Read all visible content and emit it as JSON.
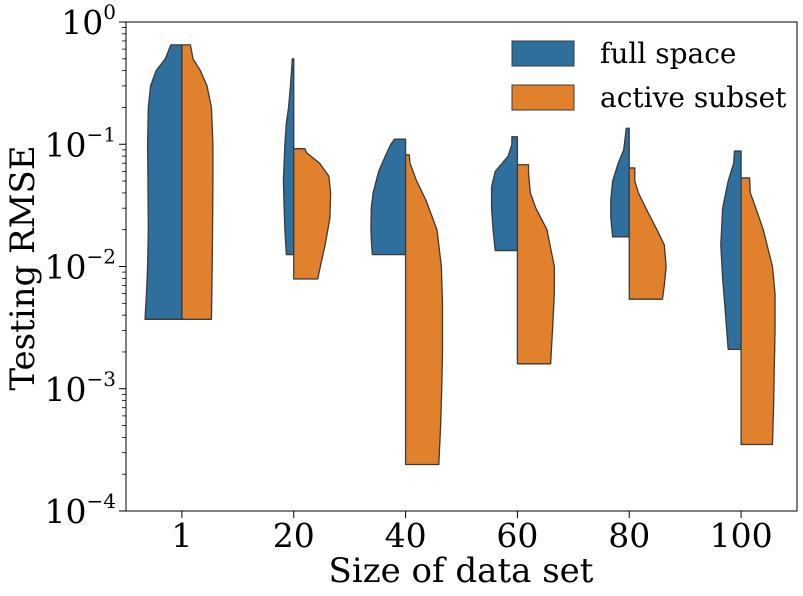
{
  "chart_data": {
    "type": "violin",
    "split": true,
    "xlabel": "Size of data set",
    "ylabel": "Testing RMSE",
    "yscale": "log",
    "ylim": [
      0.0001,
      1
    ],
    "yticks": [
      {
        "value": 1,
        "base": "10",
        "exp": "0"
      },
      {
        "value": 0.1,
        "base": "10",
        "exp": "−1"
      },
      {
        "value": 0.01,
        "base": "10",
        "exp": "−2"
      },
      {
        "value": 0.001,
        "base": "10",
        "exp": "−3"
      },
      {
        "value": 0.0001,
        "base": "10",
        "exp": "−4"
      }
    ],
    "categories": [
      "1",
      "20",
      "40",
      "60",
      "80",
      "100"
    ],
    "legend": {
      "position": "top-right"
    },
    "series": [
      {
        "name": "full space",
        "color": "#2e6f9e",
        "violins": [
          {
            "min": 0.0037,
            "max": 0.65,
            "profile": [
              [
                0.0037,
                1.0
              ],
              [
                0.006,
                0.96
              ],
              [
                0.01,
                0.93
              ],
              [
                0.02,
                0.91
              ],
              [
                0.05,
                0.92
              ],
              [
                0.1,
                0.93
              ],
              [
                0.2,
                0.91
              ],
              [
                0.3,
                0.85
              ],
              [
                0.4,
                0.7
              ],
              [
                0.5,
                0.45
              ],
              [
                0.65,
                0.3
              ]
            ]
          },
          {
            "min": 0.0125,
            "max": 0.5,
            "profile": [
              [
                0.0125,
                0.2
              ],
              [
                0.02,
                0.24
              ],
              [
                0.03,
                0.26
              ],
              [
                0.05,
                0.28
              ],
              [
                0.1,
                0.24
              ],
              [
                0.15,
                0.2
              ],
              [
                0.2,
                0.14
              ],
              [
                0.3,
                0.09
              ],
              [
                0.4,
                0.06
              ],
              [
                0.5,
                0.04
              ]
            ]
          },
          {
            "min": 0.0125,
            "max": 0.11,
            "profile": [
              [
                0.0125,
                0.9
              ],
              [
                0.015,
                0.92
              ],
              [
                0.02,
                0.94
              ],
              [
                0.03,
                0.93
              ],
              [
                0.04,
                0.88
              ],
              [
                0.06,
                0.73
              ],
              [
                0.08,
                0.55
              ],
              [
                0.1,
                0.4
              ],
              [
                0.11,
                0.3
              ]
            ]
          },
          {
            "min": 0.0135,
            "max": 0.115,
            "profile": [
              [
                0.0135,
                0.6
              ],
              [
                0.02,
                0.66
              ],
              [
                0.03,
                0.7
              ],
              [
                0.045,
                0.7
              ],
              [
                0.06,
                0.6
              ],
              [
                0.08,
                0.25
              ],
              [
                0.1,
                0.15
              ],
              [
                0.115,
                0.15
              ]
            ]
          },
          {
            "min": 0.0175,
            "max": 0.135,
            "profile": [
              [
                0.0175,
                0.45
              ],
              [
                0.025,
                0.5
              ],
              [
                0.035,
                0.5
              ],
              [
                0.05,
                0.45
              ],
              [
                0.07,
                0.3
              ],
              [
                0.09,
                0.15
              ],
              [
                0.12,
                0.1
              ],
              [
                0.135,
                0.08
              ]
            ]
          },
          {
            "min": 0.0021,
            "max": 0.088,
            "profile": [
              [
                0.0021,
                0.35
              ],
              [
                0.004,
                0.42
              ],
              [
                0.008,
                0.5
              ],
              [
                0.015,
                0.55
              ],
              [
                0.03,
                0.5
              ],
              [
                0.05,
                0.35
              ],
              [
                0.07,
                0.2
              ],
              [
                0.088,
                0.18
              ]
            ]
          }
        ]
      },
      {
        "name": "active subset",
        "color": "#e1812c",
        "violins": [
          {
            "min": 0.0037,
            "max": 0.65,
            "profile": [
              [
                0.0037,
                0.8
              ],
              [
                0.006,
                0.81
              ],
              [
                0.01,
                0.82
              ],
              [
                0.02,
                0.83
              ],
              [
                0.05,
                0.84
              ],
              [
                0.1,
                0.84
              ],
              [
                0.2,
                0.8
              ],
              [
                0.3,
                0.68
              ],
              [
                0.4,
                0.5
              ],
              [
                0.5,
                0.3
              ],
              [
                0.65,
                0.23
              ]
            ]
          },
          {
            "min": 0.0079,
            "max": 0.092,
            "profile": [
              [
                0.0079,
                0.65
              ],
              [
                0.01,
                0.72
              ],
              [
                0.015,
                0.85
              ],
              [
                0.025,
                0.98
              ],
              [
                0.04,
                1.0
              ],
              [
                0.055,
                0.95
              ],
              [
                0.07,
                0.7
              ],
              [
                0.085,
                0.35
              ],
              [
                0.092,
                0.3
              ]
            ]
          },
          {
            "min": 0.00024,
            "max": 0.082,
            "profile": [
              [
                0.00024,
                0.9
              ],
              [
                0.0005,
                0.95
              ],
              [
                0.001,
                0.98
              ],
              [
                0.002,
                1.0
              ],
              [
                0.005,
                1.0
              ],
              [
                0.01,
                0.97
              ],
              [
                0.02,
                0.85
              ],
              [
                0.035,
                0.55
              ],
              [
                0.05,
                0.3
              ],
              [
                0.07,
                0.12
              ],
              [
                0.082,
                0.1
              ]
            ]
          },
          {
            "min": 0.0016,
            "max": 0.068,
            "profile": [
              [
                0.0016,
                0.9
              ],
              [
                0.003,
                0.95
              ],
              [
                0.006,
                1.0
              ],
              [
                0.01,
                1.0
              ],
              [
                0.02,
                0.8
              ],
              [
                0.03,
                0.5
              ],
              [
                0.04,
                0.35
              ],
              [
                0.05,
                0.32
              ],
              [
                0.06,
                0.3
              ],
              [
                0.068,
                0.3
              ]
            ]
          },
          {
            "min": 0.0054,
            "max": 0.064,
            "profile": [
              [
                0.0054,
                0.9
              ],
              [
                0.007,
                0.95
              ],
              [
                0.01,
                1.0
              ],
              [
                0.015,
                0.95
              ],
              [
                0.02,
                0.75
              ],
              [
                0.03,
                0.45
              ],
              [
                0.04,
                0.25
              ],
              [
                0.05,
                0.15
              ],
              [
                0.064,
                0.15
              ]
            ]
          },
          {
            "min": 0.00035,
            "max": 0.053,
            "profile": [
              [
                0.00035,
                0.85
              ],
              [
                0.0007,
                0.88
              ],
              [
                0.0015,
                0.9
              ],
              [
                0.003,
                0.92
              ],
              [
                0.006,
                0.92
              ],
              [
                0.01,
                0.85
              ],
              [
                0.02,
                0.6
              ],
              [
                0.03,
                0.4
              ],
              [
                0.04,
                0.25
              ],
              [
                0.053,
                0.23
              ]
            ]
          }
        ]
      }
    ]
  }
}
